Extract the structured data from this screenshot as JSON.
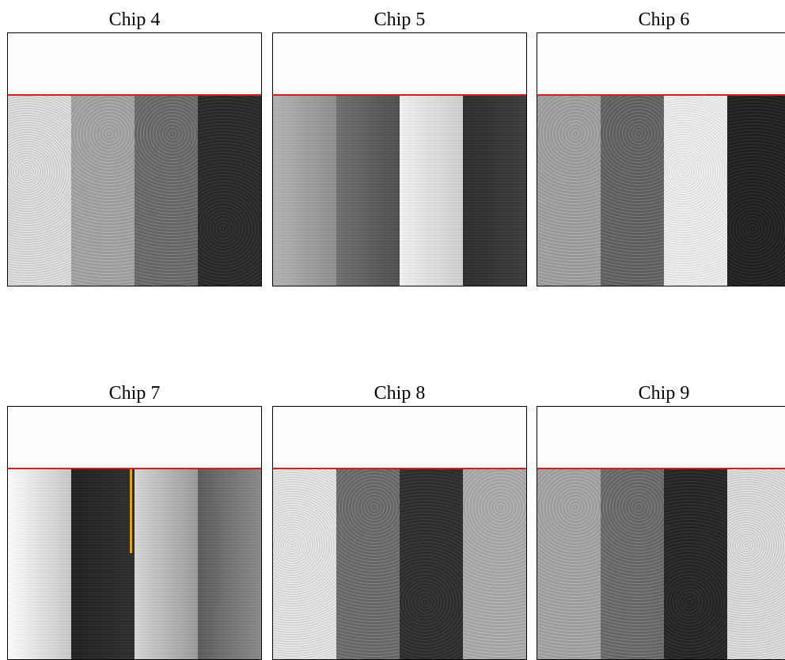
{
  "panels": [
    {
      "title": "Chip 4",
      "stripes": [
        {
          "shade": "#d8d8d8",
          "mode": "flat",
          "texture": "light"
        },
        {
          "shade": "#a9a9a9",
          "mode": "flat",
          "texture": "mid"
        },
        {
          "shade": "#6a6a6a",
          "mode": "flat",
          "texture": "mid"
        },
        {
          "shade": "#2e2e2e",
          "mode": "flat",
          "texture": "dark"
        }
      ]
    },
    {
      "title": "Chip 5",
      "stripes": [
        {
          "shade": "#b4b4b4",
          "shade2": "#8e8e8e",
          "mode": "gradient",
          "texture": "fine"
        },
        {
          "shade": "#6e6e6e",
          "shade2": "#4e4e4e",
          "mode": "gradient",
          "texture": "fine"
        },
        {
          "shade": "#f2f2f2",
          "shade2": "#cfcfcf",
          "mode": "gradient",
          "texture": "fine"
        },
        {
          "shade": "#2a2a2a",
          "shade2": "#3a3a3a",
          "mode": "gradient",
          "texture": "fine"
        }
      ]
    },
    {
      "title": "Chip 6",
      "stripes": [
        {
          "shade": "#a7a7a7",
          "mode": "flat",
          "texture": "mid"
        },
        {
          "shade": "#626262",
          "mode": "flat",
          "texture": "mid"
        },
        {
          "shade": "#efefef",
          "mode": "flat",
          "texture": "light"
        },
        {
          "shade": "#242424",
          "mode": "flat",
          "texture": "dark"
        }
      ]
    },
    {
      "title": "Chip 7",
      "marker_color": "#f0a000",
      "marker_extent": 0.44,
      "stripes": [
        {
          "shade": "#ffffff",
          "shade2": "#c8c8c8",
          "mode": "gradient",
          "texture": "fine"
        },
        {
          "shade": "#1e1e1e",
          "shade2": "#2c2c2c",
          "mode": "gradient",
          "texture": "fine",
          "has_marker": true
        },
        {
          "shade": "#d8d8d8",
          "shade2": "#9a9a9a",
          "mode": "gradient",
          "texture": "fine"
        },
        {
          "shade": "#5a5a5a",
          "shade2": "#8a8a8a",
          "mode": "gradient",
          "texture": "fine"
        }
      ]
    },
    {
      "title": "Chip 8",
      "stripes": [
        {
          "shade": "#e2e2e2",
          "mode": "flat",
          "texture": "light"
        },
        {
          "shade": "#6c6c6c",
          "mode": "flat",
          "texture": "mid"
        },
        {
          "shade": "#333333",
          "mode": "flat",
          "texture": "dark"
        },
        {
          "shade": "#b2b2b2",
          "mode": "flat",
          "texture": "mid"
        }
      ]
    },
    {
      "title": "Chip 9",
      "stripes": [
        {
          "shade": "#aaaaaa",
          "mode": "flat",
          "texture": "mid"
        },
        {
          "shade": "#6a6a6a",
          "mode": "flat",
          "texture": "mid"
        },
        {
          "shade": "#2a2a2a",
          "mode": "flat",
          "texture": "dark"
        },
        {
          "shade": "#d6d6d6",
          "mode": "flat",
          "texture": "light"
        }
      ]
    }
  ],
  "colors": {
    "divider": "#cc2222"
  }
}
